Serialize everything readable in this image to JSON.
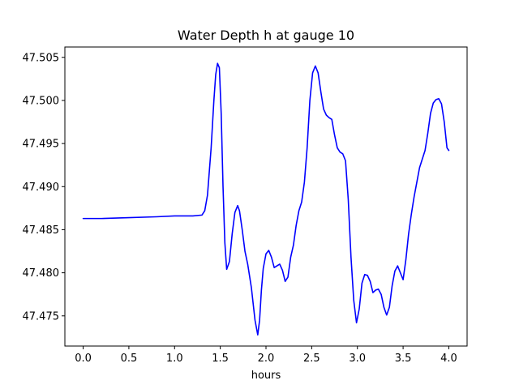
{
  "chart_data": {
    "type": "line",
    "title": "Water Depth h at gauge 10",
    "xlabel": "hours",
    "ylabel": "",
    "xlim": [
      -0.2,
      4.2
    ],
    "ylim": [
      47.4715,
      47.5062
    ],
    "grid": false,
    "legend": "none",
    "x_ticks": [
      0.0,
      0.5,
      1.0,
      1.5,
      2.0,
      2.5,
      3.0,
      3.5,
      4.0
    ],
    "x_tick_labels": [
      "0.0",
      "0.5",
      "1.0",
      "1.5",
      "2.0",
      "2.5",
      "3.0",
      "3.5",
      "4.0"
    ],
    "y_ticks": [
      47.475,
      47.48,
      47.485,
      47.49,
      47.495,
      47.5,
      47.505
    ],
    "y_tick_labels": [
      "47.475",
      "47.480",
      "47.485",
      "47.490",
      "47.495",
      "47.500",
      "47.505"
    ],
    "series": [
      {
        "color": "#0000ff",
        "x": [
          0.0,
          0.2,
          0.5,
          0.8,
          1.0,
          1.1,
          1.2,
          1.3,
          1.33,
          1.36,
          1.4,
          1.43,
          1.45,
          1.47,
          1.49,
          1.51,
          1.53,
          1.55,
          1.57,
          1.6,
          1.63,
          1.66,
          1.69,
          1.71,
          1.74,
          1.77,
          1.8,
          1.84,
          1.88,
          1.91,
          1.93,
          1.95,
          1.97,
          2.0,
          2.03,
          2.06,
          2.09,
          2.12,
          2.15,
          2.18,
          2.21,
          2.24,
          2.27,
          2.3,
          2.33,
          2.36,
          2.39,
          2.42,
          2.45,
          2.48,
          2.51,
          2.54,
          2.57,
          2.6,
          2.63,
          2.66,
          2.69,
          2.72,
          2.75,
          2.78,
          2.81,
          2.84,
          2.87,
          2.9,
          2.93,
          2.96,
          2.99,
          3.02,
          3.05,
          3.08,
          3.11,
          3.14,
          3.17,
          3.2,
          3.23,
          3.26,
          3.29,
          3.32,
          3.35,
          3.38,
          3.41,
          3.44,
          3.47,
          3.5,
          3.53,
          3.56,
          3.59,
          3.62,
          3.65,
          3.68,
          3.71,
          3.74,
          3.77,
          3.8,
          3.83,
          3.86,
          3.89,
          3.92,
          3.95,
          3.98,
          4.0
        ],
        "y": [
          47.4863,
          47.4863,
          47.4864,
          47.4865,
          47.4866,
          47.4866,
          47.4866,
          47.4867,
          47.4872,
          47.489,
          47.4945,
          47.5,
          47.503,
          47.5043,
          47.5038,
          47.4985,
          47.49,
          47.4835,
          47.4804,
          47.4813,
          47.4845,
          47.487,
          47.4878,
          47.4872,
          47.485,
          47.4825,
          47.481,
          47.4783,
          47.4745,
          47.4728,
          47.4745,
          47.478,
          47.4805,
          47.4822,
          47.4826,
          47.4818,
          47.4806,
          47.4808,
          47.481,
          47.4803,
          47.479,
          47.4795,
          47.4818,
          47.4832,
          47.4855,
          47.4872,
          47.4882,
          47.4905,
          47.4945,
          47.5,
          47.5032,
          47.504,
          47.5032,
          47.501,
          47.499,
          47.4983,
          47.498,
          47.4978,
          47.496,
          47.4945,
          47.494,
          47.4938,
          47.493,
          47.4885,
          47.4818,
          47.4768,
          47.4742,
          47.4758,
          47.4788,
          47.4798,
          47.4797,
          47.479,
          47.4777,
          47.478,
          47.4781,
          47.4775,
          47.476,
          47.4751,
          47.476,
          47.4785,
          47.4802,
          47.4808,
          47.48,
          47.4792,
          47.4815,
          47.4845,
          47.4868,
          47.4888,
          47.4905,
          47.4922,
          47.4932,
          47.4942,
          47.4962,
          47.4985,
          47.4997,
          47.5001,
          47.5002,
          47.4996,
          47.4975,
          47.4945,
          47.4942
        ]
      }
    ]
  }
}
